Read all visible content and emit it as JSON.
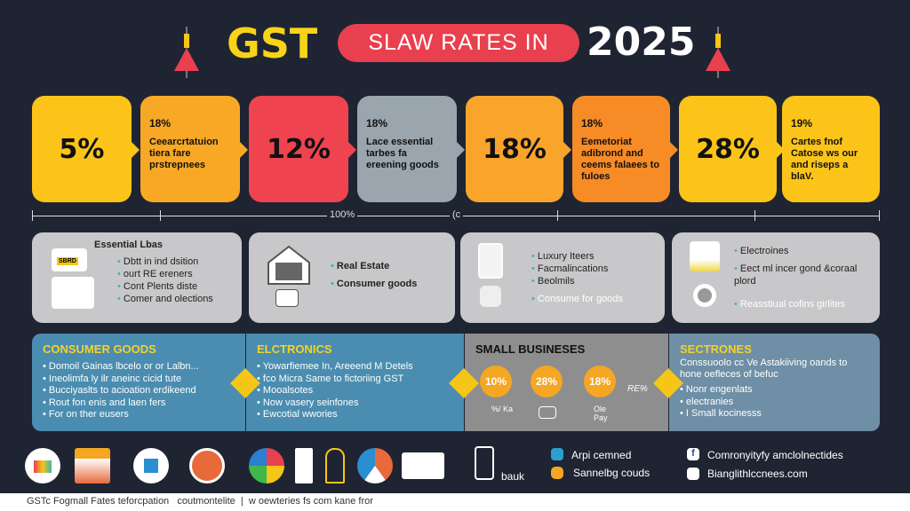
{
  "header": {
    "gst": "GST",
    "pill": "SLAW RATES IN",
    "year": "2025"
  },
  "rates": [
    {
      "big": "5%",
      "color": "#fcc419"
    },
    {
      "pct": "18%",
      "desc": "Ceearcrtatuion tiera fare prstrepnees",
      "color": "#f9a825"
    },
    {
      "big": "12%",
      "color": "#ef4350"
    },
    {
      "pct": "18%",
      "desc": "Lace essential tarbes fa ereening goods",
      "color": "#9aa5ae"
    },
    {
      "big": "18%",
      "color": "#f9a42a"
    },
    {
      "pct": "18%",
      "desc": "Eemetoriat adibrond and ceems falaees to fuloes",
      "color": "#f78b25"
    },
    {
      "big": "28%",
      "color": "#fcc419"
    },
    {
      "pct": "19%",
      "desc": "Cartes fnof Catose ws our and riseps a blaV.",
      "color": "#fcc419"
    }
  ],
  "scale": {
    "label1": "100%",
    "label2": "(c"
  },
  "cards": [
    {
      "title": "Essential Lbas",
      "badge": "SBRD",
      "items": [
        "Dbtt in ind dsition",
        "ourt RE ereners",
        "Cont Plents diste",
        "Comer and olections"
      ]
    },
    {
      "items": [
        "Real Estate",
        "Consumer goods"
      ]
    },
    {
      "items": [
        "Luxury Iteers",
        "Facmalincations",
        "Beolmils",
        "Consume for goods"
      ]
    },
    {
      "items": [
        "Electroines",
        "Eect ml incer gond &coraal plord",
        "Reasstiual cofins girlites"
      ]
    }
  ],
  "bands": [
    {
      "title": "CONSUMER GOODS",
      "items": [
        "Domoil Gainas lbcelo or or Lalbn...",
        "Ineolimfa ly ilr aneinc cicid tute",
        "Bucciyaslts to acioation erdikeend",
        "Rout fon enis and laen fers",
        "For on ther eusers"
      ]
    },
    {
      "title": "ELCTRONICS",
      "items": [
        "Yowarfiemee In, Areeend M Detels",
        "fco Micra Same to fictoriing GST",
        "Mooalsotes",
        "Now vasery seinfones",
        "Ewcotial wwories"
      ]
    },
    {
      "title": "SMALL BUSINESES",
      "circles": [
        "10%",
        "28%",
        "18%"
      ],
      "sublabels": [
        "%/ Ka",
        "",
        "Ole Pay"
      ],
      "side": "RE%"
    },
    {
      "title": "SECTRONES",
      "lead": "Conssuoolo cc Ve Astakiiving oands to hone oefleces of befuc",
      "items": [
        "Nonr engenlats",
        "electranies",
        "I Small kocinesss"
      ]
    }
  ],
  "contacts": {
    "phone_label": "bauk",
    "a": "Arpi cemned",
    "b": "Sannelbg couds",
    "c": "Comronyityfy amclolnectides",
    "d": "Bianglithlccnees.com"
  },
  "footer": {
    "a": "GSTc Fogmall Fates teforcpation",
    "b": "coutmontelite",
    "sep": "|",
    "c": "w oewteries fs com kane fror"
  }
}
